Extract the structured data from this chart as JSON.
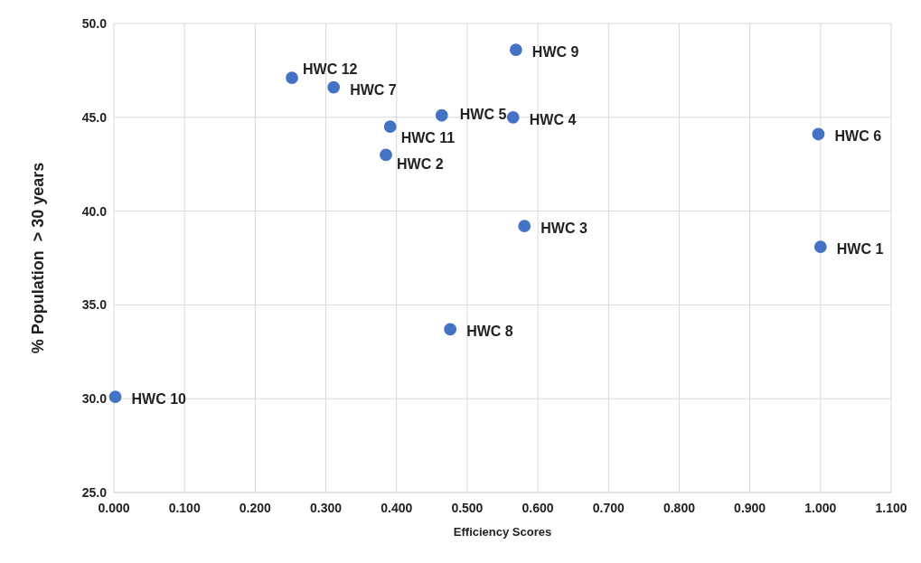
{
  "chart_data": {
    "type": "scatter",
    "xlabel": "Efficiency Scores",
    "ylabel": "% Population  > 30 years",
    "x": [
      1.0,
      0.385,
      0.581,
      0.565,
      0.464,
      0.997,
      0.311,
      0.476,
      0.569,
      0.002,
      0.391,
      0.252
    ],
    "series": [
      {
        "color": "#4472c4",
        "values": [
          38.1,
          43.0,
          39.2,
          45.0,
          45.1,
          44.1,
          46.6,
          33.7,
          48.6,
          30.1,
          44.5,
          47.1
        ]
      }
    ],
    "marker": "circle",
    "grid": true,
    "xlim": [
      0,
      1.1
    ],
    "ylim": [
      25,
      50
    ],
    "xticks": [
      {
        "value": 0,
        "label": "0.000"
      },
      {
        "value": 0.1,
        "label": "0.100"
      },
      {
        "value": 0.2,
        "label": "0.200"
      },
      {
        "value": 0.3,
        "label": "0.300"
      },
      {
        "value": 0.4,
        "label": "0.400"
      },
      {
        "value": 0.5,
        "label": "0.500"
      },
      {
        "value": 0.6,
        "label": "0.600"
      },
      {
        "value": 0.7,
        "label": "0.700"
      },
      {
        "value": 0.8,
        "label": "0.800"
      },
      {
        "value": 0.9,
        "label": "0.900"
      },
      {
        "value": 1.0,
        "label": "1.000"
      },
      {
        "value": 1.1,
        "label": "1.100"
      }
    ],
    "yticks": [
      {
        "value": 25,
        "label": "25.0"
      },
      {
        "value": 30,
        "label": "30.0"
      },
      {
        "value": 35,
        "label": "35.0"
      },
      {
        "value": 40,
        "label": "40.0"
      },
      {
        "value": 45,
        "label": "45.0"
      },
      {
        "value": 50,
        "label": "50.0"
      }
    ],
    "annotations": [
      {
        "text": "HWC 1",
        "x": 1.0,
        "y": 38.1
      },
      {
        "text": "HWC 2",
        "x": 0.385,
        "y": 43.0
      },
      {
        "text": "HWC 3",
        "x": 0.581,
        "y": 39.2
      },
      {
        "text": "HWC 4",
        "x": 0.565,
        "y": 45.0
      },
      {
        "text": "HWC 5",
        "x": 0.464,
        "y": 45.1
      },
      {
        "text": "HWC 6",
        "x": 0.997,
        "y": 44.1
      },
      {
        "text": "HWC 7",
        "x": 0.311,
        "y": 46.6
      },
      {
        "text": "HWC 8",
        "x": 0.476,
        "y": 33.7
      },
      {
        "text": "HWC 9",
        "x": 0.569,
        "y": 48.6
      },
      {
        "text": "HWC 10",
        "x": 0.002,
        "y": 30.1
      },
      {
        "text": "HWC 11",
        "x": 0.391,
        "y": 44.5
      },
      {
        "text": "HWC 12",
        "x": 0.252,
        "y": 47.1
      }
    ]
  }
}
